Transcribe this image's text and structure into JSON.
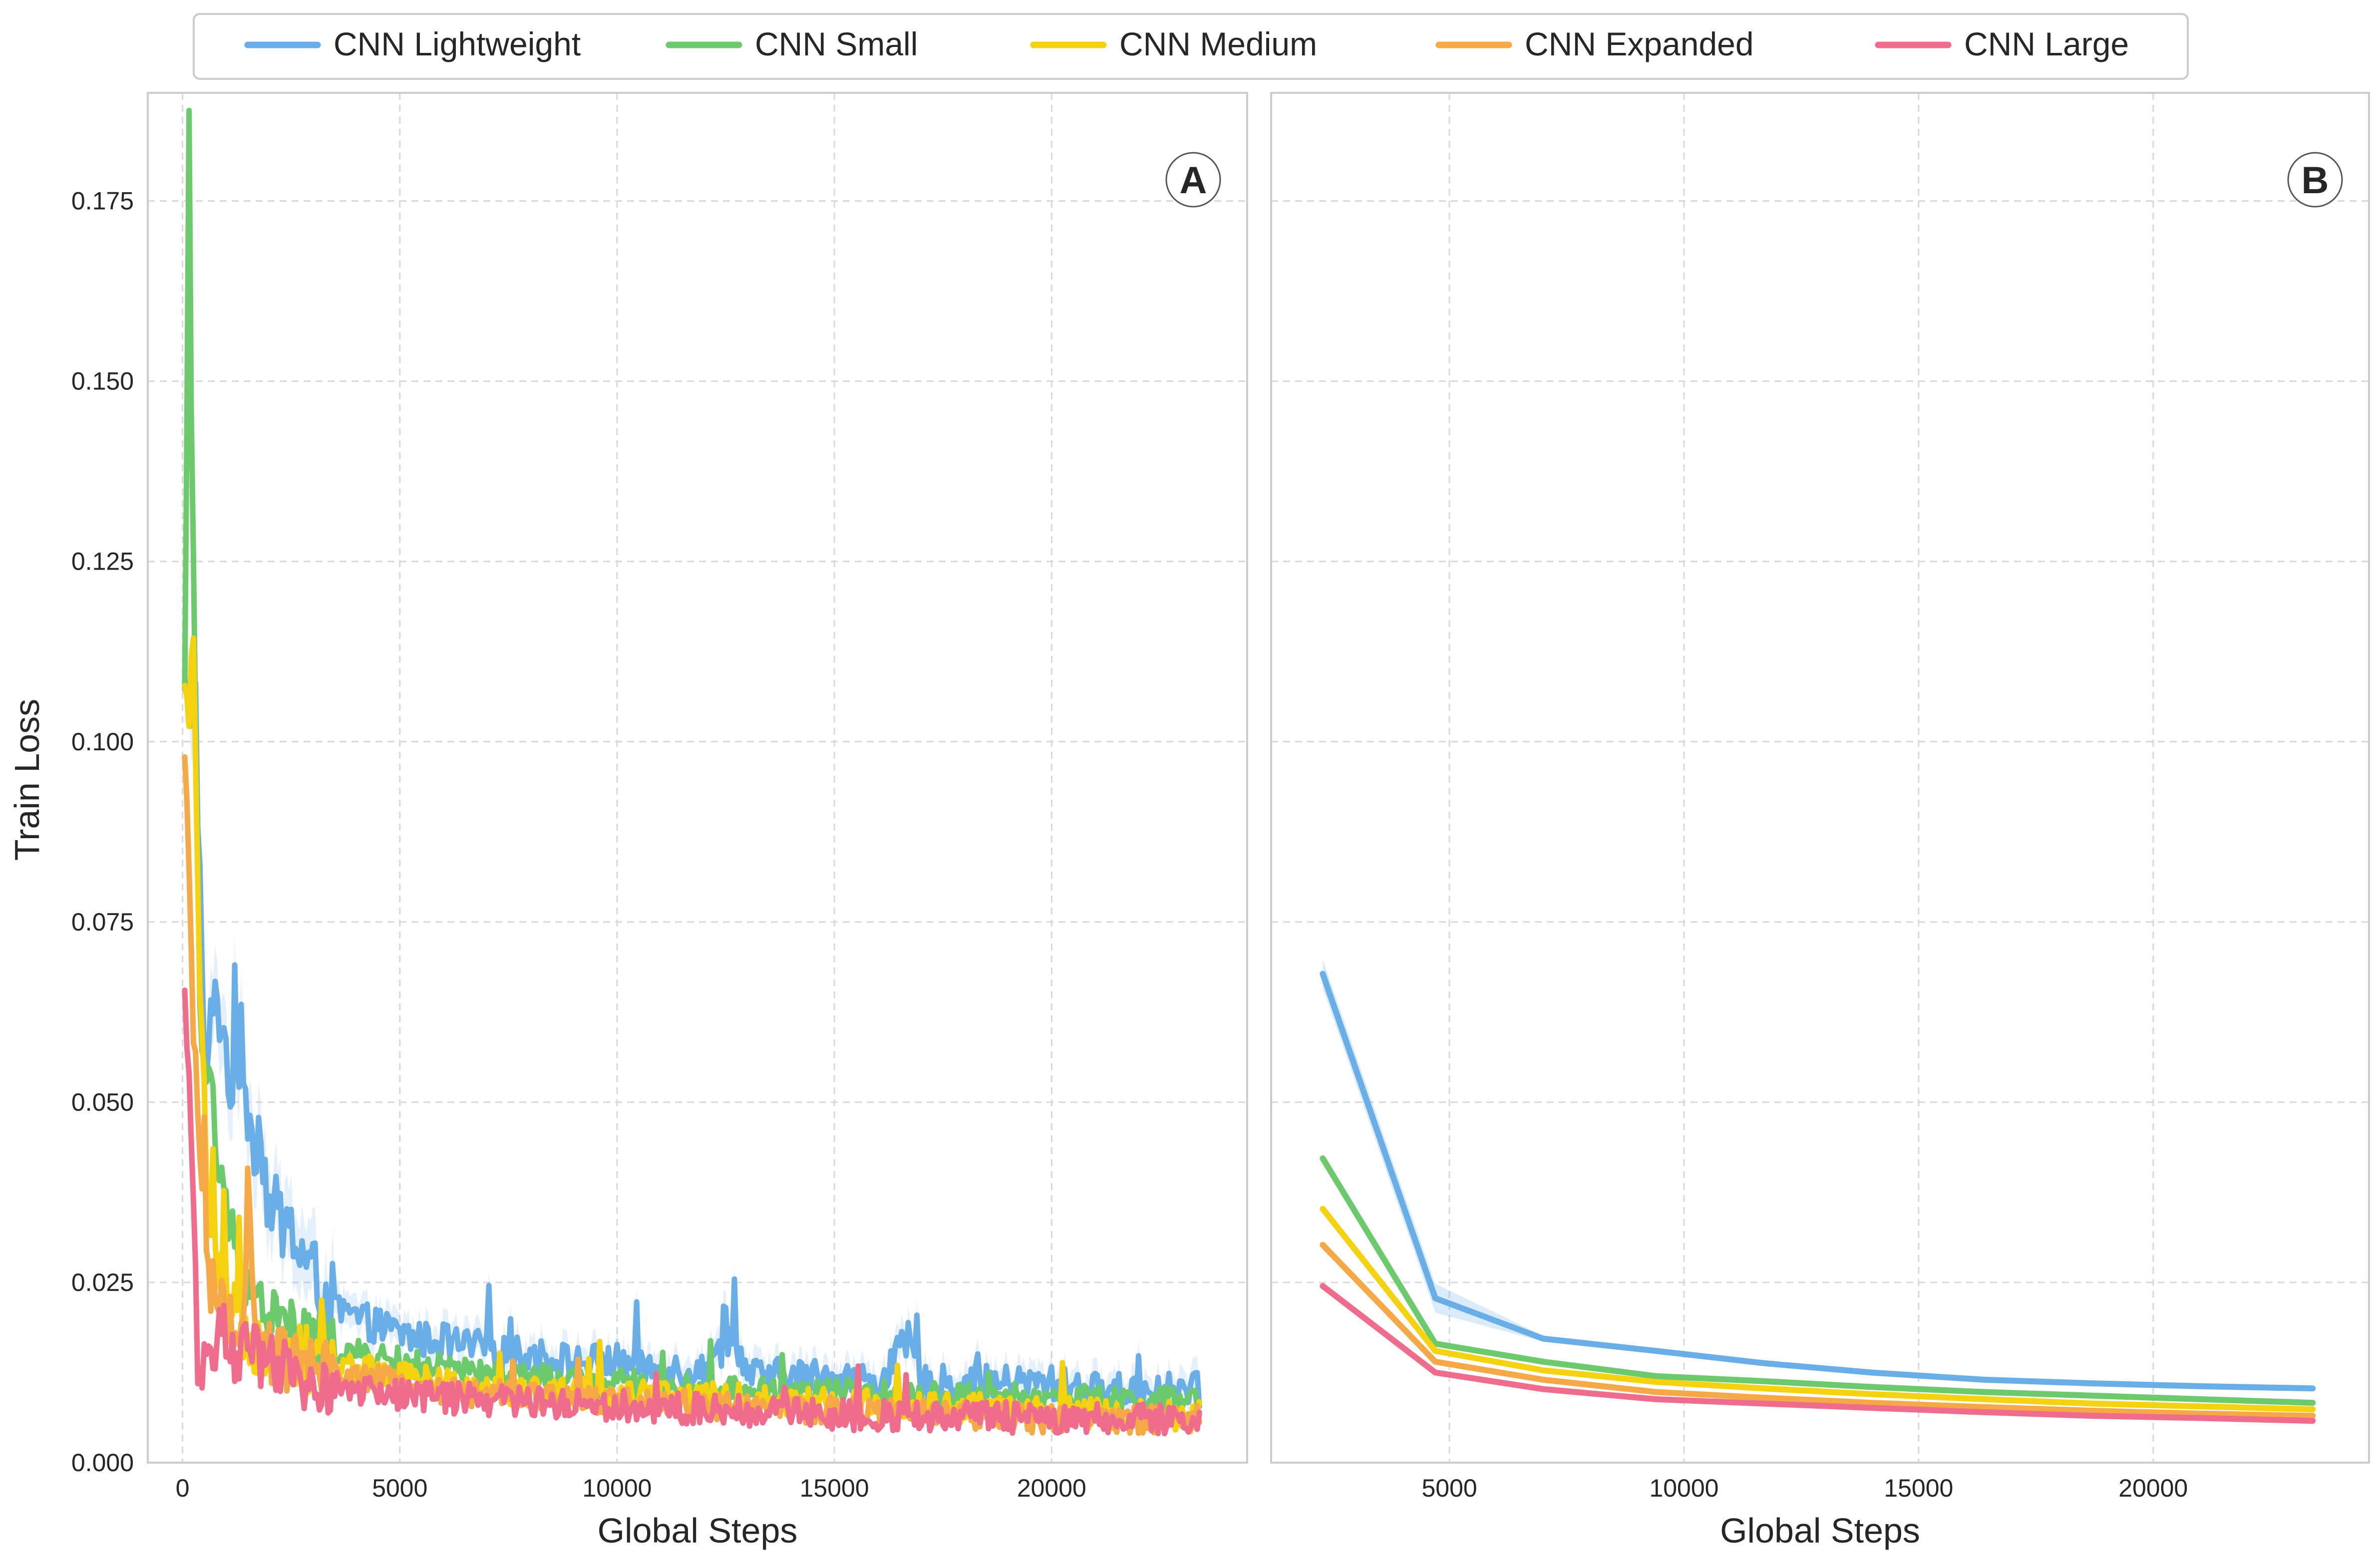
{
  "figure": {
    "ylabel": "Train Loss",
    "legend": {
      "placement": "top-center",
      "entries": [
        {
          "name": "CNN Lightweight",
          "color": "#6aaee8"
        },
        {
          "name": "CNN Small",
          "color": "#6cc96c"
        },
        {
          "name": "CNN Medium",
          "color": "#f5d20f"
        },
        {
          "name": "CNN Expanded",
          "color": "#f4a946"
        },
        {
          "name": "CNN Large",
          "color": "#f06c8c"
        }
      ]
    }
  },
  "chart_data": [
    {
      "type": "line",
      "panel_label": "A",
      "xlabel": "Global Steps",
      "ylabel": "Train Loss",
      "xlim": [
        -800,
        24500
      ],
      "ylim": [
        0,
        0.19
      ],
      "xticks": [
        0,
        5000,
        10000,
        15000,
        20000
      ],
      "xtick_labels": [
        "0",
        "5000",
        "10000",
        "15000",
        "20000"
      ],
      "yticks": [
        0,
        0.025,
        0.05,
        0.075,
        0.1,
        0.125,
        0.15,
        0.175
      ],
      "ytick_labels": [
        "0.000",
        "0.025",
        "0.050",
        "0.075",
        "0.100",
        "0.125",
        "0.150",
        "0.175"
      ],
      "grid": true,
      "shaded_band": "variability across runs",
      "series": [
        {
          "name": "CNN Lightweight",
          "color": "#6aaee8",
          "x": [
            50,
            200,
            300,
            400,
            500,
            650,
            800,
            1000,
            1200,
            1400,
            1600,
            1800,
            2000,
            2200,
            2500,
            2800,
            3200,
            3600,
            4000,
            4500,
            5000,
            5500,
            6000,
            6500,
            7000,
            7500,
            8000,
            9000,
            10000,
            11000,
            12000,
            12700,
            13000,
            14000,
            15000,
            16000,
            16700,
            17000,
            18000,
            19000,
            20000,
            21000,
            22000,
            23000,
            23400
          ],
          "y": [
            0.105,
            0.105,
            0.106,
            0.08,
            0.053,
            0.06,
            0.065,
            0.057,
            0.05,
            0.055,
            0.045,
            0.046,
            0.035,
            0.034,
            0.032,
            0.028,
            0.024,
            0.021,
            0.02,
            0.019,
            0.018,
            0.017,
            0.017,
            0.016,
            0.016,
            0.015,
            0.015,
            0.014,
            0.014,
            0.013,
            0.013,
            0.018,
            0.012,
            0.012,
            0.012,
            0.011,
            0.017,
            0.011,
            0.011,
            0.011,
            0.011,
            0.01,
            0.01,
            0.01,
            0.01
          ],
          "noise": 0.0025
        },
        {
          "name": "CNN Small",
          "color": "#6cc96c",
          "x": [
            50,
            150,
            200,
            300,
            400,
            500,
            650,
            800,
            1000,
            1200,
            1500,
            1800,
            2200,
            2600,
            3000,
            3500,
            4000,
            5000,
            6000,
            7000,
            8000,
            9000,
            10000,
            12000,
            14000,
            16000,
            18000,
            20000,
            22000,
            23400
          ],
          "y": [
            0.105,
            0.188,
            0.15,
            0.1,
            0.06,
            0.053,
            0.056,
            0.04,
            0.035,
            0.03,
            0.025,
            0.022,
            0.02,
            0.018,
            0.017,
            0.016,
            0.015,
            0.014,
            0.013,
            0.012,
            0.012,
            0.011,
            0.011,
            0.01,
            0.01,
            0.0095,
            0.009,
            0.009,
            0.0085,
            0.0085
          ],
          "noise": 0.002
        },
        {
          "name": "CNN Medium",
          "color": "#f5d20f",
          "x": [
            50,
            150,
            250,
            350,
            450,
            550,
            650,
            800,
            1000,
            1200,
            1500,
            2000,
            2500,
            3000,
            4000,
            5000,
            6000,
            8000,
            10000,
            12000,
            14000,
            16000,
            18000,
            20000,
            22000,
            23400
          ],
          "y": [
            0.105,
            0.106,
            0.11,
            0.08,
            0.06,
            0.04,
            0.03,
            0.025,
            0.022,
            0.02,
            0.018,
            0.016,
            0.015,
            0.014,
            0.013,
            0.012,
            0.011,
            0.01,
            0.0095,
            0.009,
            0.0085,
            0.008,
            0.0075,
            0.007,
            0.0065,
            0.0065
          ],
          "noise": 0.0022
        },
        {
          "name": "CNN Expanded",
          "color": "#f4a946",
          "x": [
            50,
            150,
            250,
            350,
            450,
            550,
            650,
            800,
            1000,
            1200,
            1400,
            1500,
            1700,
            2000,
            2500,
            3000,
            4000,
            5000,
            6000,
            8000,
            10000,
            12000,
            14000,
            16000,
            18000,
            20000,
            22000,
            23400
          ],
          "y": [
            0.095,
            0.08,
            0.06,
            0.05,
            0.04,
            0.03,
            0.025,
            0.022,
            0.02,
            0.018,
            0.016,
            0.037,
            0.016,
            0.015,
            0.014,
            0.013,
            0.012,
            0.011,
            0.01,
            0.009,
            0.0085,
            0.008,
            0.0075,
            0.007,
            0.0065,
            0.006,
            0.006,
            0.006
          ],
          "noise": 0.002
        },
        {
          "name": "CNN Large",
          "color": "#f06c8c",
          "x": [
            50,
            150,
            250,
            350,
            450,
            600,
            800,
            1000,
            1200,
            1500,
            2000,
            2500,
            3000,
            4000,
            5000,
            6000,
            8000,
            10000,
            11000,
            12000,
            14000,
            16000,
            18000,
            20000,
            22000,
            23400
          ],
          "y": [
            0.062,
            0.055,
            0.035,
            0.015,
            0.014,
            0.016,
            0.018,
            0.017,
            0.016,
            0.015,
            0.013,
            0.012,
            0.011,
            0.01,
            0.0095,
            0.009,
            0.0085,
            0.008,
            0.0075,
            0.0075,
            0.007,
            0.0065,
            0.0065,
            0.006,
            0.006,
            0.0055
          ],
          "noise": 0.0022
        }
      ]
    },
    {
      "type": "line",
      "panel_label": "B",
      "xlabel": "Global Steps",
      "ylabel": "",
      "xlim": [
        1200,
        24600
      ],
      "ylim": [
        0,
        0.19
      ],
      "xticks": [
        5000,
        10000,
        15000,
        20000
      ],
      "xtick_labels": [
        "5000",
        "10000",
        "15000",
        "20000"
      ],
      "grid": true,
      "shared_y_with": "A",
      "series": [
        {
          "name": "CNN Lightweight",
          "color": "#6aaee8",
          "x": [
            2300,
            4700,
            7000,
            9400,
            11700,
            14000,
            16400,
            18700,
            21000,
            23400
          ],
          "y": [
            0.0678,
            0.0228,
            0.0172,
            0.0155,
            0.0138,
            0.0125,
            0.0115,
            0.011,
            0.0106,
            0.0103
          ]
        },
        {
          "name": "CNN Small",
          "color": "#6cc96c",
          "x": [
            2300,
            4700,
            7000,
            9400,
            11700,
            14000,
            16400,
            18700,
            21000,
            23400
          ],
          "y": [
            0.0422,
            0.0165,
            0.014,
            0.012,
            0.0113,
            0.0105,
            0.0098,
            0.0093,
            0.0088,
            0.0083
          ]
        },
        {
          "name": "CNN Medium",
          "color": "#f5d20f",
          "x": [
            2300,
            4700,
            7000,
            9400,
            11700,
            14000,
            16400,
            18700,
            21000,
            23400
          ],
          "y": [
            0.0352,
            0.0155,
            0.0128,
            0.0112,
            0.0103,
            0.0095,
            0.0088,
            0.0082,
            0.0078,
            0.0074
          ]
        },
        {
          "name": "CNN Expanded",
          "color": "#f4a946",
          "x": [
            2300,
            4700,
            7000,
            9400,
            11700,
            14000,
            16400,
            18700,
            21000,
            23400
          ],
          "y": [
            0.0302,
            0.014,
            0.0115,
            0.0098,
            0.009,
            0.0083,
            0.0077,
            0.0072,
            0.0068,
            0.0065
          ]
        },
        {
          "name": "CNN Large",
          "color": "#f06c8c",
          "x": [
            2300,
            4700,
            7000,
            9400,
            11700,
            14000,
            16400,
            18700,
            21000,
            23400
          ],
          "y": [
            0.0245,
            0.0125,
            0.0102,
            0.0088,
            0.0082,
            0.0076,
            0.007,
            0.0065,
            0.0062,
            0.0058
          ]
        }
      ]
    }
  ]
}
